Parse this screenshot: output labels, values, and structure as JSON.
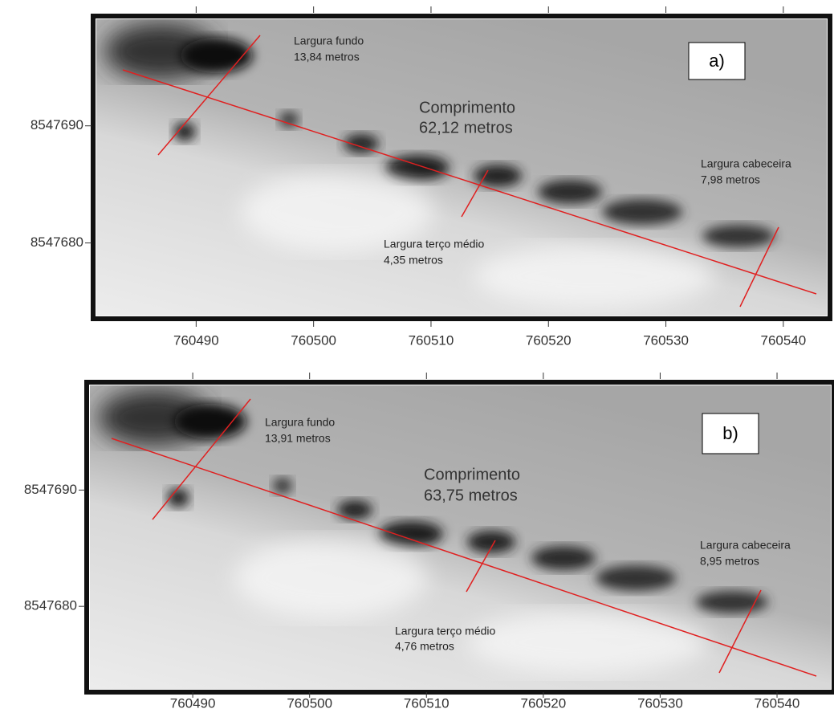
{
  "panels": [
    {
      "label": "a)",
      "xlim": [
        760481.5,
        760543.7
      ],
      "ylim": [
        8547673.8,
        8547699.1
      ],
      "xticks": [
        760490,
        760500,
        760510,
        760520,
        760530,
        760540
      ],
      "yticks": [
        8547690,
        8547680
      ],
      "annotations": [
        {
          "title": "Largura fundo",
          "value": "13,84 metros"
        },
        {
          "title": "Comprimento",
          "value": "62,12 metros"
        },
        {
          "title": "Largura cabeceira",
          "value": "7,98 metros"
        },
        {
          "title": "Largura terço médio",
          "value": "4,35 metros"
        }
      ]
    },
    {
      "label": "b)",
      "xlim": [
        760481.2,
        760544.6
      ],
      "ylim": [
        8547672.9,
        8547699.0
      ],
      "xticks": [
        760490,
        760500,
        760510,
        760520,
        760530,
        760540
      ],
      "yticks": [
        8547690,
        8547680
      ],
      "annotations": [
        {
          "title": "Largura fundo",
          "value": "13,91 metros"
        },
        {
          "title": "Comprimento",
          "value": "63,75 metros"
        },
        {
          "title": "Largura cabeceira",
          "value": "8,95 metros"
        },
        {
          "title": "Largura terço médio",
          "value": "4,76 metros"
        }
      ]
    }
  ]
}
